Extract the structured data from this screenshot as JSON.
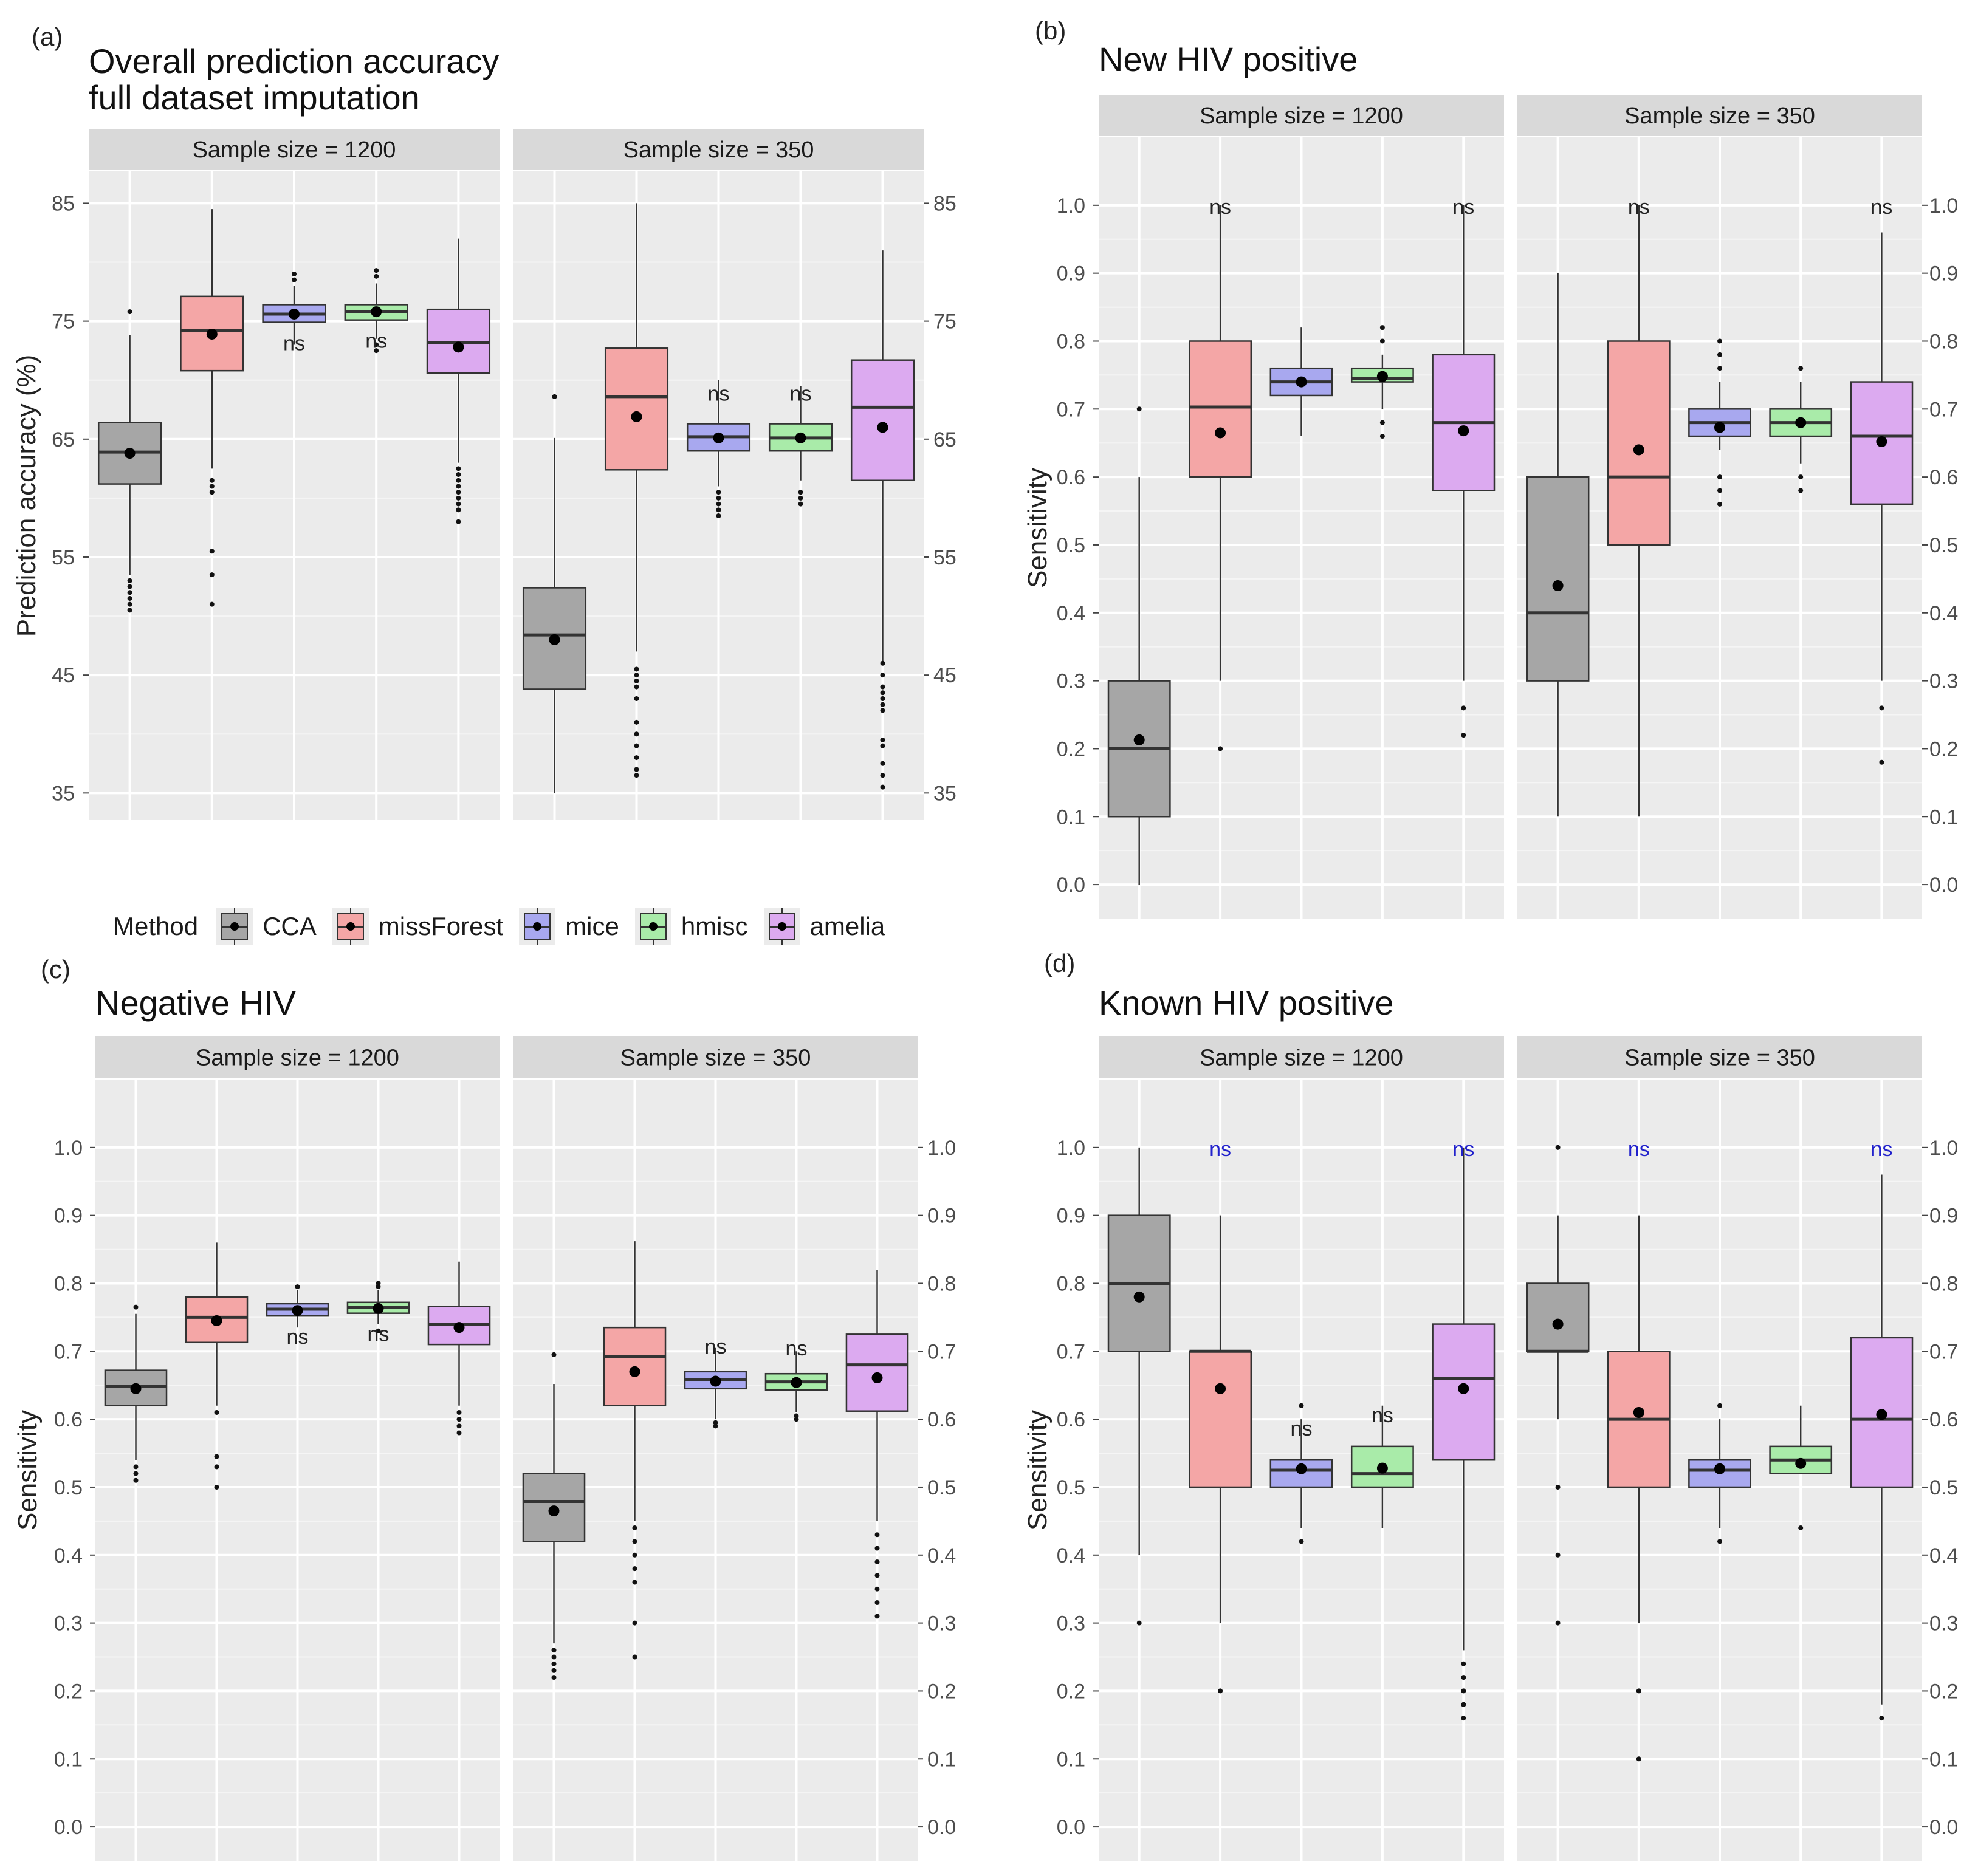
{
  "legend": {
    "title": "Method",
    "methods": [
      "CCA",
      "missForest",
      "mice",
      "hmisc",
      "amelia"
    ],
    "colors": {
      "CCA": "#a6a6a6",
      "missForest": "#f4a6a6",
      "mice": "#a8a8ef",
      "hmisc": "#a9eba9",
      "amelia": "#dcaaf0"
    }
  },
  "chart_data": [
    {
      "type": "boxplot",
      "panel_label": "(a)",
      "title": "Overall prediction accuracy\nfull dataset imputation",
      "ylabel": "Prediction accuracy (%)",
      "ylim": [
        32.7,
        87.7
      ],
      "yticks": [
        35,
        45,
        55,
        65,
        75,
        85
      ],
      "ytick_labels": [
        "35",
        "45",
        "55",
        "65",
        "75",
        "85"
      ],
      "facets": [
        {
          "label": "Sample size = 1200",
          "categories": [
            "CCA",
            "missForest",
            "mice",
            "hmisc",
            "amelia"
          ],
          "boxes": [
            {
              "min": 53.5,
              "q1": 61.2,
              "median": 63.9,
              "q3": 66.4,
              "max": 73.8,
              "mean": 63.8,
              "outliers": [
                50.5,
                51.0,
                51.5,
                52.0,
                52.5,
                53.0,
                75.8
              ],
              "sig": ""
            },
            {
              "min": 62.5,
              "q1": 70.8,
              "median": 74.2,
              "q3": 77.1,
              "max": 84.5,
              "mean": 73.9,
              "outliers": [
                51.0,
                53.5,
                55.5,
                60.5,
                61.0,
                61.5
              ],
              "sig": ""
            },
            {
              "min": 73.0,
              "q1": 74.9,
              "median": 75.6,
              "q3": 76.4,
              "max": 78.0,
              "mean": 75.6,
              "outliers": [
                78.5,
                79.0
              ],
              "sig": "ns"
            },
            {
              "min": 73.5,
              "q1": 75.1,
              "median": 75.8,
              "q3": 76.4,
              "max": 78.2,
              "mean": 75.8,
              "outliers": [
                72.5,
                73.0,
                78.8,
                79.3
              ],
              "sig": "ns"
            },
            {
              "min": 63.0,
              "q1": 70.6,
              "median": 73.2,
              "q3": 76.0,
              "max": 82.0,
              "mean": 72.8,
              "outliers": [
                58.0,
                59.0,
                59.5,
                60.0,
                60.5,
                61.0,
                61.5,
                62.0,
                62.5
              ],
              "sig": ""
            }
          ]
        },
        {
          "label": "Sample size = 350",
          "categories": [
            "CCA",
            "missForest",
            "mice",
            "hmisc",
            "amelia"
          ],
          "boxes": [
            {
              "min": 35.0,
              "q1": 43.8,
              "median": 48.4,
              "q3": 52.4,
              "max": 65.1,
              "mean": 48.0,
              "outliers": [
                68.6
              ],
              "sig": ""
            },
            {
              "min": 47.0,
              "q1": 62.4,
              "median": 68.6,
              "q3": 72.7,
              "max": 85.0,
              "mean": 66.9,
              "outliers": [
                36.5,
                37.0,
                38.0,
                39.0,
                40.0,
                41.0,
                43.0,
                44.0,
                44.5,
                45.0,
                45.5
              ],
              "sig": ""
            },
            {
              "min": 61.0,
              "q1": 64.0,
              "median": 65.2,
              "q3": 66.3,
              "max": 70.0,
              "mean": 65.1,
              "outliers": [
                58.5,
                59.0,
                59.5,
                60.0,
                60.5
              ],
              "sig": "ns"
            },
            {
              "min": 61.5,
              "q1": 64.0,
              "median": 65.1,
              "q3": 66.3,
              "max": 69.5,
              "mean": 65.1,
              "outliers": [
                59.5,
                60.0,
                60.5
              ],
              "sig": "ns"
            },
            {
              "min": 46.0,
              "q1": 61.5,
              "median": 67.7,
              "q3": 71.7,
              "max": 81.0,
              "mean": 66.0,
              "outliers": [
                35.5,
                36.5,
                37.5,
                39.0,
                39.5,
                42.0,
                42.5,
                43.0,
                43.5,
                44.0,
                45.0,
                46.0
              ],
              "sig": ""
            }
          ]
        }
      ]
    },
    {
      "type": "boxplot",
      "panel_label": "(b)",
      "title": "New HIV positive",
      "ylabel": "Sensitivity",
      "ylim": [
        -0.05,
        1.1
      ],
      "yticks": [
        0.0,
        0.1,
        0.2,
        0.3,
        0.4,
        0.5,
        0.6,
        0.7,
        0.8,
        0.9,
        1.0
      ],
      "ytick_labels": [
        "0.0",
        "0.1",
        "0.2",
        "0.3",
        "0.4",
        "0.5",
        "0.6",
        "0.7",
        "0.8",
        "0.9",
        "1.0"
      ],
      "facets": [
        {
          "label": "Sample size = 1200",
          "categories": [
            "CCA",
            "missForest",
            "mice",
            "hmisc",
            "amelia"
          ],
          "boxes": [
            {
              "min": 0.0,
              "q1": 0.1,
              "median": 0.2,
              "q3": 0.3,
              "max": 0.6,
              "mean": 0.213,
              "outliers": [
                0.7
              ],
              "sig": ""
            },
            {
              "min": 0.3,
              "q1": 0.6,
              "median": 0.703,
              "q3": 0.8,
              "max": 1.0,
              "mean": 0.665,
              "outliers": [
                0.2
              ],
              "sig": "ns"
            },
            {
              "min": 0.66,
              "q1": 0.72,
              "median": 0.74,
              "q3": 0.76,
              "max": 0.82,
              "mean": 0.74,
              "outliers": [],
              "sig": ""
            },
            {
              "min": 0.7,
              "q1": 0.74,
              "median": 0.745,
              "q3": 0.76,
              "max": 0.78,
              "mean": 0.748,
              "outliers": [
                0.66,
                0.68,
                0.8,
                0.82
              ],
              "sig": ""
            },
            {
              "min": 0.3,
              "q1": 0.58,
              "median": 0.68,
              "q3": 0.78,
              "max": 1.0,
              "mean": 0.668,
              "outliers": [
                0.22,
                0.26
              ],
              "sig": "ns"
            }
          ]
        },
        {
          "label": "Sample size = 350",
          "categories": [
            "CCA",
            "missForest",
            "mice",
            "hmisc",
            "amelia"
          ],
          "boxes": [
            {
              "min": 0.1,
              "q1": 0.3,
              "median": 0.4,
              "q3": 0.6,
              "max": 0.9,
              "mean": 0.44,
              "outliers": [],
              "sig": ""
            },
            {
              "min": 0.1,
              "q1": 0.5,
              "median": 0.6,
              "q3": 0.8,
              "max": 1.0,
              "mean": 0.64,
              "outliers": [],
              "sig": "ns"
            },
            {
              "min": 0.64,
              "q1": 0.66,
              "median": 0.68,
              "q3": 0.7,
              "max": 0.74,
              "mean": 0.673,
              "outliers": [
                0.56,
                0.58,
                0.6,
                0.76,
                0.78,
                0.8
              ],
              "sig": ""
            },
            {
              "min": 0.62,
              "q1": 0.66,
              "median": 0.68,
              "q3": 0.7,
              "max": 0.74,
              "mean": 0.68,
              "outliers": [
                0.58,
                0.6,
                0.76
              ],
              "sig": ""
            },
            {
              "min": 0.3,
              "q1": 0.56,
              "median": 0.66,
              "q3": 0.74,
              "max": 0.96,
              "mean": 0.652,
              "outliers": [
                0.18,
                0.26
              ],
              "sig": "ns"
            }
          ]
        }
      ]
    },
    {
      "type": "boxplot",
      "panel_label": "(c)",
      "title": "Negative HIV",
      "ylabel": "Sensitivity",
      "ylim": [
        -0.05,
        1.1
      ],
      "yticks": [
        0.0,
        0.1,
        0.2,
        0.3,
        0.4,
        0.5,
        0.6,
        0.7,
        0.8,
        0.9,
        1.0
      ],
      "ytick_labels": [
        "0.0",
        "0.1",
        "0.2",
        "0.3",
        "0.4",
        "0.5",
        "0.6",
        "0.7",
        "0.8",
        "0.9",
        "1.0"
      ],
      "facets": [
        {
          "label": "Sample size = 1200",
          "categories": [
            "CCA",
            "missForest",
            "mice",
            "hmisc",
            "amelia"
          ],
          "boxes": [
            {
              "min": 0.54,
              "q1": 0.62,
              "median": 0.648,
              "q3": 0.672,
              "max": 0.755,
              "mean": 0.645,
              "outliers": [
                0.51,
                0.52,
                0.53,
                0.765
              ],
              "sig": ""
            },
            {
              "min": 0.62,
              "q1": 0.713,
              "median": 0.75,
              "q3": 0.78,
              "max": 0.86,
              "mean": 0.745,
              "outliers": [
                0.5,
                0.53,
                0.545,
                0.61
              ],
              "sig": ""
            },
            {
              "min": 0.735,
              "q1": 0.752,
              "median": 0.762,
              "q3": 0.77,
              "max": 0.79,
              "mean": 0.76,
              "outliers": [
                0.795
              ],
              "sig": "ns"
            },
            {
              "min": 0.74,
              "q1": 0.756,
              "median": 0.765,
              "q3": 0.772,
              "max": 0.79,
              "mean": 0.763,
              "outliers": [
                0.73,
                0.795,
                0.8
              ],
              "sig": "ns"
            },
            {
              "min": 0.62,
              "q1": 0.71,
              "median": 0.74,
              "q3": 0.766,
              "max": 0.832,
              "mean": 0.735,
              "outliers": [
                0.58,
                0.59,
                0.6,
                0.61
              ],
              "sig": ""
            }
          ]
        },
        {
          "label": "Sample size = 350",
          "categories": [
            "CCA",
            "missForest",
            "mice",
            "hmisc",
            "amelia"
          ],
          "boxes": [
            {
              "min": 0.27,
              "q1": 0.42,
              "median": 0.479,
              "q3": 0.52,
              "max": 0.652,
              "mean": 0.465,
              "outliers": [
                0.22,
                0.23,
                0.24,
                0.25,
                0.26,
                0.695
              ],
              "sig": ""
            },
            {
              "min": 0.45,
              "q1": 0.62,
              "median": 0.692,
              "q3": 0.735,
              "max": 0.862,
              "mean": 0.67,
              "outliers": [
                0.25,
                0.3,
                0.36,
                0.38,
                0.4,
                0.42,
                0.44
              ],
              "sig": ""
            },
            {
              "min": 0.6,
              "q1": 0.645,
              "median": 0.658,
              "q3": 0.67,
              "max": 0.705,
              "mean": 0.656,
              "outliers": [
                0.59,
                0.595
              ],
              "sig": "ns"
            },
            {
              "min": 0.61,
              "q1": 0.643,
              "median": 0.655,
              "q3": 0.667,
              "max": 0.7,
              "mean": 0.654,
              "outliers": [
                0.6,
                0.605
              ],
              "sig": "ns"
            },
            {
              "min": 0.45,
              "q1": 0.612,
              "median": 0.68,
              "q3": 0.725,
              "max": 0.82,
              "mean": 0.661,
              "outliers": [
                0.31,
                0.33,
                0.35,
                0.37,
                0.39,
                0.41,
                0.43
              ],
              "sig": ""
            }
          ]
        }
      ]
    },
    {
      "type": "boxplot",
      "panel_label": "(d)",
      "title": "Known HIV positive",
      "ylabel": "Sensitivity",
      "ylim": [
        -0.05,
        1.1
      ],
      "yticks": [
        0.0,
        0.1,
        0.2,
        0.3,
        0.4,
        0.5,
        0.6,
        0.7,
        0.8,
        0.9,
        1.0
      ],
      "ytick_labels": [
        "0.0",
        "0.1",
        "0.2",
        "0.3",
        "0.4",
        "0.5",
        "0.6",
        "0.7",
        "0.8",
        "0.9",
        "1.0"
      ],
      "sig_color": "#2222cc",
      "facets": [
        {
          "label": "Sample size = 1200",
          "categories": [
            "CCA",
            "missForest",
            "mice",
            "hmisc",
            "amelia"
          ],
          "boxes": [
            {
              "min": 0.4,
              "q1": 0.7,
              "median": 0.8,
              "q3": 0.9,
              "max": 1.0,
              "mean": 0.78,
              "outliers": [
                0.3
              ],
              "sig": ""
            },
            {
              "min": 0.3,
              "q1": 0.5,
              "median": 0.7,
              "q3": 0.7,
              "max": 0.9,
              "mean": 0.645,
              "outliers": [
                0.2
              ],
              "sig": "ns",
              "sig_top": true
            },
            {
              "min": 0.44,
              "q1": 0.5,
              "median": 0.525,
              "q3": 0.54,
              "max": 0.6,
              "mean": 0.527,
              "outliers": [
                0.42,
                0.62
              ],
              "sig": "ns"
            },
            {
              "min": 0.44,
              "q1": 0.5,
              "median": 0.52,
              "q3": 0.56,
              "max": 0.62,
              "mean": 0.528,
              "outliers": [],
              "sig": "ns"
            },
            {
              "min": 0.26,
              "q1": 0.54,
              "median": 0.66,
              "q3": 0.74,
              "max": 1.0,
              "mean": 0.645,
              "outliers": [
                0.16,
                0.18,
                0.2,
                0.22,
                0.24
              ],
              "sig": "ns",
              "sig_top": true
            }
          ]
        },
        {
          "label": "Sample size = 350",
          "categories": [
            "CCA",
            "missForest",
            "mice",
            "hmisc",
            "amelia"
          ],
          "boxes": [
            {
              "min": 0.6,
              "q1": 0.7,
              "median": 0.7,
              "q3": 0.8,
              "max": 0.9,
              "mean": 0.74,
              "outliers": [
                0.3,
                0.4,
                0.5,
                1.0
              ],
              "sig": ""
            },
            {
              "min": 0.3,
              "q1": 0.5,
              "median": 0.6,
              "q3": 0.7,
              "max": 0.9,
              "mean": 0.61,
              "outliers": [
                0.1,
                0.2
              ],
              "sig": "ns",
              "sig_top": true
            },
            {
              "min": 0.44,
              "q1": 0.5,
              "median": 0.525,
              "q3": 0.54,
              "max": 0.6,
              "mean": 0.527,
              "outliers": [
                0.42,
                0.62
              ],
              "sig": ""
            },
            {
              "min": 0.52,
              "q1": 0.52,
              "median": 0.54,
              "q3": 0.56,
              "max": 0.62,
              "mean": 0.535,
              "outliers": [
                0.44
              ],
              "sig": ""
            },
            {
              "min": 0.18,
              "q1": 0.5,
              "median": 0.6,
              "q3": 0.72,
              "max": 0.96,
              "mean": 0.607,
              "outliers": [
                0.16
              ],
              "sig": "ns",
              "sig_top": true
            }
          ]
        }
      ]
    }
  ]
}
